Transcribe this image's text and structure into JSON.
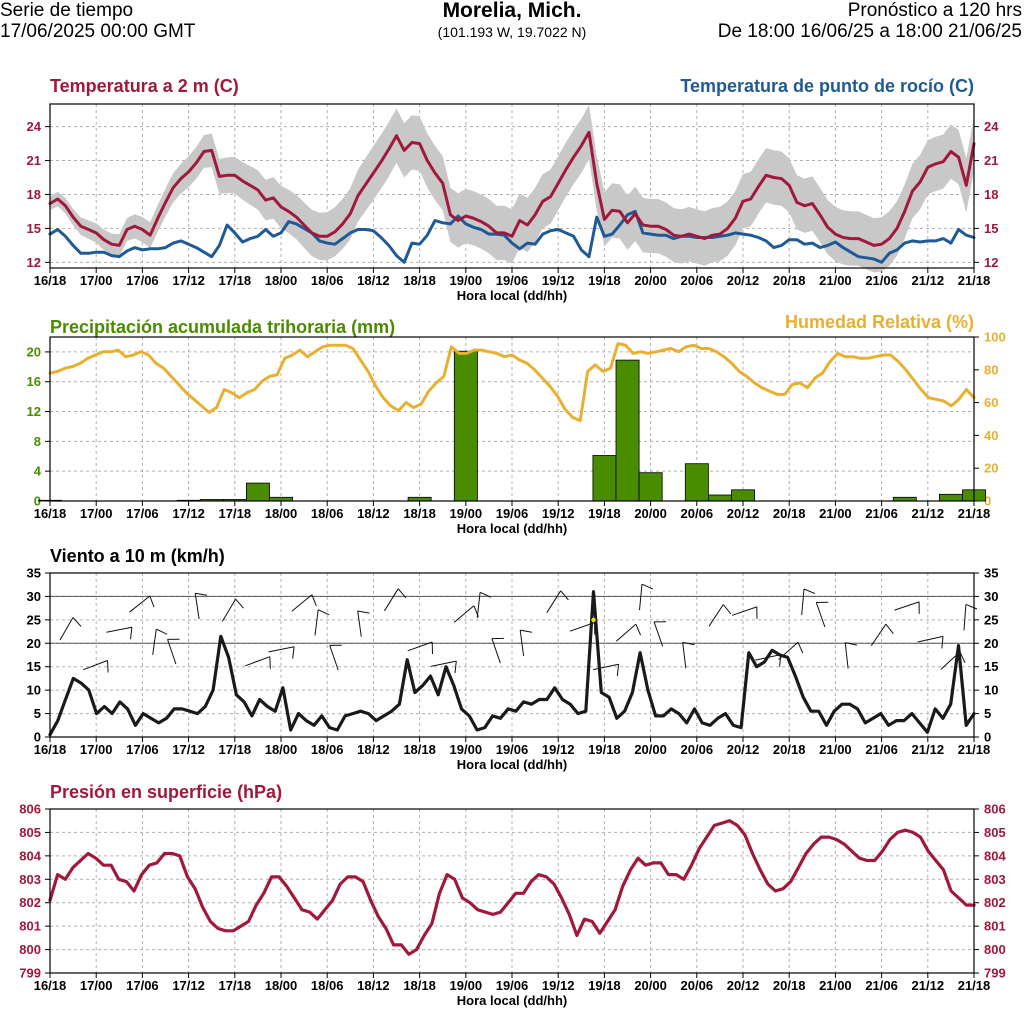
{
  "header": {
    "left_line1": "Serie de tiempo",
    "left_line2": "17/06/2025 00:00 GMT",
    "city": "Morelia, Mich.",
    "coords": "(101.193 W, 19.7022 N)",
    "right_line1": "Pronóstico a 120 hrs",
    "right_line2": "De 18:00 16/06/25 a 18:00 21/06/25"
  },
  "colors": {
    "temperature": "#a0183c",
    "dewpoint": "#1f5a94",
    "precip": "#4a8c00",
    "humidity": "#e8b030",
    "wind": "#1a1a1a",
    "pressure": "#a0183c",
    "band": "#c8c8c8"
  },
  "chart_data": [
    {
      "type": "line",
      "title_left": "Temperatura a 2 m (C)",
      "title_right": "Temperatura de punto de rocío (C)",
      "xlabel": "Hora local (dd/hh)",
      "x_ticks": [
        "16/18",
        "17/00",
        "17/06",
        "17/12",
        "17/18",
        "18/00",
        "18/06",
        "18/12",
        "18/18",
        "19/00",
        "19/06",
        "19/12",
        "19/18",
        "20/00",
        "20/06",
        "20/12",
        "20/18",
        "21/00",
        "21/06",
        "21/12",
        "21/18"
      ],
      "ylim": [
        11.5,
        26
      ],
      "yticks": [
        12,
        15,
        18,
        21,
        24
      ],
      "series": [
        {
          "name": "Temperatura a 2 m (C)",
          "values": [
            17.2,
            17.6,
            17.0,
            16.0,
            15.2,
            14.9,
            14.6,
            14.0,
            13.6,
            13.5,
            14.9,
            15.2,
            14.9,
            14.4,
            15.9,
            17.3,
            18.6,
            19.4,
            20.0,
            20.8,
            21.8,
            21.9,
            19.6,
            19.7,
            19.7,
            19.2,
            18.8,
            18.4,
            17.5,
            17.7,
            16.9,
            16.5,
            16.0,
            15.3,
            14.6,
            14.3,
            14.3,
            14.7,
            15.4,
            16.3,
            17.9,
            18.9,
            19.9,
            20.9,
            22.0,
            23.2,
            21.9,
            22.6,
            22.5,
            21.0,
            19.9,
            19.0,
            16.2,
            15.7,
            16.1,
            15.9,
            15.6,
            15.2,
            14.6,
            14.6,
            14.3,
            15.7,
            15.3,
            16.2,
            17.4,
            17.8,
            19.0,
            20.2,
            21.3,
            22.3,
            23.5,
            19.0,
            15.8,
            16.6,
            16.5,
            15.5,
            16.3,
            15.3,
            15.2,
            15.2,
            14.9,
            14.4,
            14.3,
            14.5,
            14.3,
            14.1,
            14.4,
            14.5,
            15.0,
            15.9,
            17.4,
            17.6,
            18.7,
            19.7,
            19.5,
            19.4,
            18.8,
            17.3,
            17.0,
            17.2,
            16.2,
            15.1,
            14.5,
            14.2,
            14.1,
            14.1,
            13.8,
            13.5,
            13.6,
            14.1,
            15.0,
            16.5,
            18.3,
            19.1,
            20.4,
            20.7,
            20.9,
            21.8,
            21.3,
            18.8,
            22.5
          ]
        },
        {
          "name": "Temperatura de punto de rocío (C)",
          "values": [
            14.5,
            14.9,
            14.3,
            13.5,
            12.8,
            12.8,
            12.9,
            12.9,
            12.6,
            12.5,
            13.0,
            13.3,
            13.1,
            13.2,
            13.2,
            13.3,
            13.7,
            13.9,
            13.6,
            13.3,
            12.9,
            12.5,
            13.5,
            15.3,
            14.6,
            13.8,
            14.1,
            14.3,
            14.9,
            14.3,
            14.6,
            15.6,
            15.4,
            15.0,
            14.6,
            13.9,
            13.7,
            13.6,
            14.1,
            14.6,
            14.9,
            14.9,
            14.8,
            14.2,
            13.5,
            12.6,
            12.0,
            13.7,
            13.6,
            14.4,
            15.7,
            15.5,
            15.4,
            16.1,
            15.4,
            15.1,
            14.9,
            14.5,
            14.5,
            14.4,
            13.7,
            13.2,
            13.7,
            13.6,
            14.5,
            14.8,
            14.9,
            14.6,
            14.3,
            13.1,
            12.5,
            16.0,
            14.3,
            14.5,
            15.3,
            16.2,
            16.5,
            14.6,
            14.5,
            14.4,
            14.4,
            14.1,
            14.3,
            14.3,
            14.2,
            14.2,
            14.2,
            14.3,
            14.4,
            14.6,
            14.5,
            14.4,
            14.2,
            13.9,
            13.3,
            13.5,
            14.0,
            14.0,
            13.6,
            13.7,
            13.3,
            13.5,
            13.8,
            13.3,
            12.9,
            12.5,
            12.4,
            12.3,
            12.0,
            12.8,
            13.1,
            13.7,
            13.9,
            13.8,
            13.9,
            13.9,
            14.1,
            13.7,
            14.9,
            14.4,
            14.2
          ]
        }
      ]
    },
    {
      "type": "bar",
      "title_left": "Precipitación acumulada trihoraria (mm)",
      "title_right": "Humedad Relativa (%)",
      "xlabel": "Hora local (dd/hh)",
      "x_ticks": [
        "16/18",
        "17/00",
        "17/06",
        "17/12",
        "17/18",
        "18/00",
        "18/06",
        "18/12",
        "18/18",
        "19/00",
        "19/06",
        "19/12",
        "19/18",
        "20/00",
        "20/06",
        "20/12",
        "20/18",
        "21/00",
        "21/06",
        "21/12",
        "21/18"
      ],
      "ylim_left": [
        0,
        22
      ],
      "yticks_left": [
        0,
        4,
        8,
        12,
        16,
        20
      ],
      "ylim_right": [
        0,
        100
      ],
      "yticks_right": [
        0,
        20,
        40,
        60,
        80,
        100
      ],
      "precip_bars_mm": [
        0.1,
        0,
        0,
        0,
        0,
        0,
        0.1,
        0.2,
        0.2,
        2.4,
        0.5,
        0,
        0,
        0,
        0,
        0,
        0.5,
        0,
        20.1,
        0,
        0,
        0,
        0,
        0,
        6.1,
        18.9,
        3.8,
        0,
        5.0,
        0.8,
        1.5,
        0,
        0,
        0,
        0,
        0,
        0,
        0.5,
        0,
        0.9,
        1.5
      ],
      "humidity_pct": [
        78,
        79,
        81,
        82,
        84,
        87,
        89,
        91,
        91,
        92,
        88,
        89,
        91,
        89,
        84,
        81,
        76,
        71,
        66,
        62,
        58,
        54,
        57,
        68,
        66,
        63,
        66,
        68,
        73,
        76,
        77,
        87,
        89,
        92,
        88,
        91,
        94,
        95,
        95,
        95,
        93,
        86,
        79,
        70,
        63,
        58,
        55,
        60,
        57,
        59,
        67,
        72,
        76,
        94,
        90,
        90,
        92,
        92,
        91,
        90,
        88,
        89,
        86,
        84,
        80,
        75,
        70,
        64,
        56,
        51,
        49,
        79,
        83,
        79,
        81,
        96,
        95,
        90,
        91,
        90,
        91,
        92,
        93,
        91,
        94,
        95,
        93,
        93,
        91,
        88,
        84,
        79,
        76,
        72,
        69,
        67,
        65,
        65,
        71,
        72,
        69,
        75,
        78,
        85,
        90,
        88,
        88,
        87,
        87,
        88,
        89,
        89,
        85,
        80,
        74,
        68,
        63,
        62,
        61,
        58,
        62,
        68,
        63
      ]
    },
    {
      "type": "line",
      "title_left": "Viento a 10 m (km/h)",
      "xlabel": "Hora local (dd/hh)",
      "x_ticks": [
        "16/18",
        "17/00",
        "17/06",
        "17/12",
        "17/18",
        "18/00",
        "18/06",
        "18/12",
        "18/18",
        "19/00",
        "19/06",
        "19/12",
        "19/18",
        "20/00",
        "20/06",
        "20/12",
        "20/18",
        "21/00",
        "21/06",
        "21/12",
        "21/18"
      ],
      "ylim": [
        0,
        35
      ],
      "yticks": [
        0,
        5,
        10,
        15,
        20,
        25,
        30,
        35
      ],
      "series": [
        {
          "name": "",
          "values": [
            0.5,
            3.5,
            8,
            12.5,
            11.5,
            10,
            5,
            6.5,
            5,
            7.5,
            6,
            2.5,
            5,
            4,
            3,
            4,
            6,
            6,
            5.5,
            5,
            6.5,
            10,
            21.5,
            17,
            9,
            7.5,
            4.5,
            8,
            6.5,
            5.5,
            10.5,
            1.5,
            5,
            3.5,
            2.5,
            4.5,
            2,
            1.5,
            4.5,
            5,
            5.5,
            5,
            3.5,
            4.5,
            5.5,
            7,
            16.5,
            9.5,
            11,
            13,
            9,
            15,
            11,
            6,
            4.5,
            1.5,
            2,
            4.5,
            4,
            6,
            5.5,
            7.5,
            7,
            8,
            8,
            10.5,
            8,
            7,
            5,
            5.5,
            31,
            9.5,
            8.5,
            4,
            5.5,
            9.5,
            18,
            10,
            4.5,
            4.5,
            6,
            5,
            3,
            6,
            3,
            2.5,
            4,
            5,
            2.5,
            2,
            18,
            15,
            16,
            18.5,
            17.5,
            17,
            13,
            8.5,
            5.5,
            5.5,
            2.5,
            5.5,
            7,
            7,
            6,
            3,
            4,
            5,
            2.5,
            3.5,
            3.5,
            5,
            3,
            1,
            6,
            4,
            7,
            19.5,
            2.5,
            5
          ]
        }
      ],
      "wind_barbs": 40
    },
    {
      "type": "line",
      "title_left": "Presión en superficie (hPa)",
      "xlabel": "Hora local (dd/hh)",
      "x_ticks": [
        "16/18",
        "17/00",
        "17/06",
        "17/12",
        "17/18",
        "18/00",
        "18/06",
        "18/12",
        "18/18",
        "19/00",
        "19/06",
        "19/12",
        "19/18",
        "20/00",
        "20/06",
        "20/12",
        "20/18",
        "21/00",
        "21/06",
        "21/12",
        "21/18"
      ],
      "ylim": [
        799,
        806
      ],
      "yticks": [
        799,
        800,
        801,
        802,
        803,
        804,
        805,
        806
      ],
      "series": [
        {
          "name": "",
          "values": [
            802.1,
            803.2,
            803.0,
            803.5,
            803.8,
            804.1,
            803.9,
            803.6,
            803.6,
            803.0,
            802.9,
            802.5,
            803.2,
            803.6,
            803.7,
            804.1,
            804.1,
            804.0,
            803.1,
            802.6,
            801.8,
            801.2,
            800.9,
            800.8,
            800.8,
            801.0,
            801.2,
            801.9,
            802.4,
            803.1,
            803.1,
            802.7,
            802.2,
            801.7,
            801.6,
            801.3,
            801.7,
            802.1,
            802.8,
            803.1,
            803.1,
            802.9,
            802.1,
            801.4,
            800.9,
            800.2,
            800.2,
            799.8,
            800.0,
            800.6,
            801.1,
            802.4,
            803.2,
            803.0,
            802.2,
            802.0,
            801.7,
            801.6,
            801.5,
            801.6,
            802.0,
            802.4,
            802.4,
            802.9,
            803.2,
            803.1,
            802.8,
            802.2,
            801.5,
            800.6,
            801.3,
            801.2,
            800.7,
            801.2,
            801.7,
            802.7,
            803.4,
            803.9,
            803.6,
            803.7,
            803.7,
            803.2,
            803.2,
            803.0,
            803.6,
            804.3,
            804.8,
            805.3,
            805.4,
            805.5,
            805.3,
            804.9,
            804.1,
            803.4,
            802.8,
            802.5,
            802.6,
            802.9,
            803.5,
            804.1,
            804.5,
            804.8,
            804.8,
            804.7,
            804.5,
            804.2,
            803.9,
            803.8,
            803.8,
            804.2,
            804.7,
            805.0,
            805.1,
            805.0,
            804.8,
            804.2,
            803.8,
            803.4,
            802.5,
            802.2,
            801.9,
            801.9
          ]
        }
      ]
    }
  ]
}
